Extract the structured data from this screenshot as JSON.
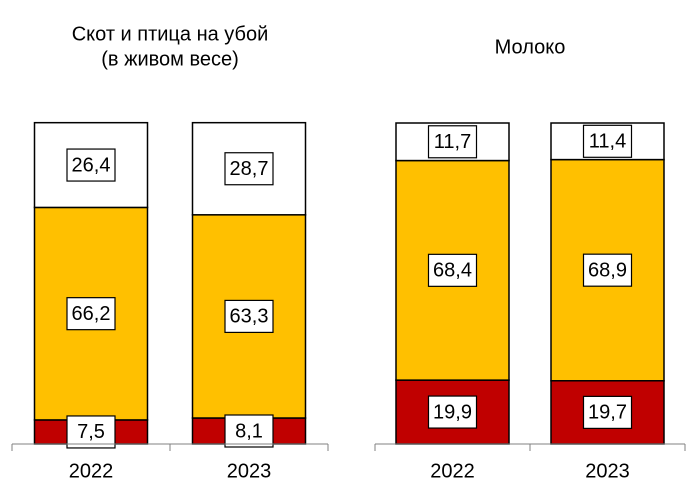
{
  "chart_data": [
    {
      "type": "bar",
      "stacked": true,
      "title": [
        "Скот и птица на убой",
        "(в живом весе)"
      ],
      "categories": [
        "2022",
        "2023"
      ],
      "ylim": [
        0,
        100
      ],
      "series": [
        {
          "color": "#c00000",
          "values": [
            7.5,
            8.1
          ],
          "value_labels": [
            "7,5",
            "8,1"
          ]
        },
        {
          "color": "#ffc000",
          "values": [
            66.2,
            63.3
          ],
          "value_labels": [
            "66,2",
            "63,3"
          ]
        },
        {
          "color": "#ffffff",
          "values": [
            26.4,
            28.7
          ],
          "value_labels": [
            "26,4",
            "28,7"
          ]
        }
      ]
    },
    {
      "type": "bar",
      "stacked": true,
      "title": [
        "Молоко"
      ],
      "categories": [
        "2022",
        "2023"
      ],
      "ylim": [
        0,
        100
      ],
      "series": [
        {
          "color": "#c00000",
          "values": [
            19.9,
            19.7
          ],
          "value_labels": [
            "19,9",
            "19,7"
          ]
        },
        {
          "color": "#ffc000",
          "values": [
            68.4,
            68.9
          ],
          "value_labels": [
            "68,4",
            "68,9"
          ]
        },
        {
          "color": "#ffffff",
          "values": [
            11.7,
            11.4
          ],
          "value_labels": [
            "11,7",
            "11,4"
          ]
        }
      ]
    }
  ]
}
